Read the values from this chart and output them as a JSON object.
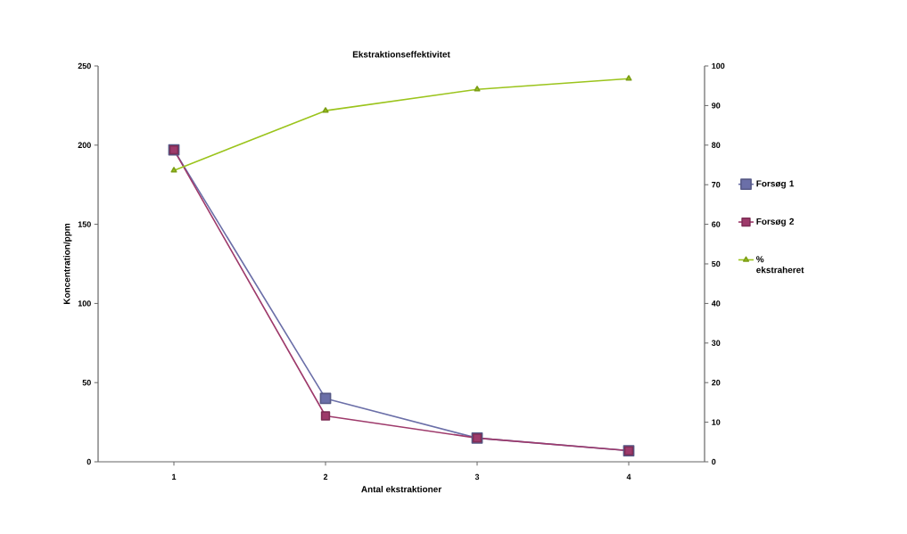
{
  "chart_data": {
    "type": "line",
    "title": "Ekstraktionseffektivitet",
    "xlabel": "Antal ekstraktioner",
    "ylabel": "Koncentration/ppm",
    "categories": [
      "1",
      "2",
      "3",
      "4"
    ],
    "series": [
      {
        "name": "Forsøg 1",
        "color": "#6b6fa8",
        "marker": "square",
        "values": [
          197,
          40,
          15,
          7
        ]
      },
      {
        "name": "Forsøg 2",
        "color": "#9e3a6b",
        "marker": "square",
        "values": [
          197,
          29,
          15,
          7
        ]
      },
      {
        "name": "% ekstraheret",
        "color": "#9bc41c",
        "marker": "triangle",
        "axis": "y2",
        "values": [
          73.6,
          88.7,
          94.1,
          96.8
        ]
      }
    ],
    "ylim": [
      0,
      250
    ],
    "yticks": [
      0,
      50,
      100,
      150,
      200,
      250
    ],
    "y2lim": [
      0,
      100
    ],
    "y2ticks": [
      0,
      10,
      20,
      30,
      40,
      50,
      60,
      70,
      80,
      90,
      100
    ],
    "legend": "right",
    "grid": false
  }
}
